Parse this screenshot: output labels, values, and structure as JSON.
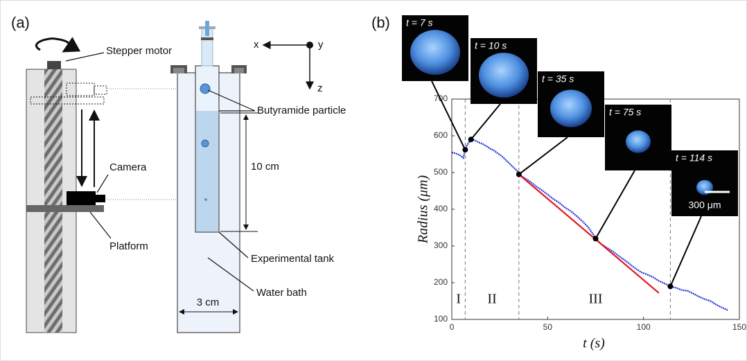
{
  "panel_a": {
    "label": "(a)",
    "labels": {
      "stepper_motor": "Stepper motor",
      "camera": "Camera",
      "platform": "Platform",
      "particle": "Butyramide particle",
      "height": "10 cm",
      "tank": "Experimental tank",
      "bath": "Water bath",
      "width": "3 cm",
      "x": "x",
      "y": "y",
      "z": "z"
    }
  },
  "chart_data": {
    "type": "line",
    "panel_label": "(b)",
    "x_label": "t (s)",
    "y_label": "Radius (μm)",
    "xlim": [
      0,
      150
    ],
    "xticks": [
      0,
      50,
      100,
      150
    ],
    "ylim": [
      100,
      700
    ],
    "yticks": [
      100,
      200,
      300,
      400,
      500,
      600,
      700
    ],
    "x": [
      0,
      2,
      4,
      6,
      7,
      8,
      10,
      12,
      14,
      16,
      18,
      20,
      22,
      24,
      26,
      28,
      30,
      32,
      34,
      35,
      38,
      41,
      44,
      47,
      50,
      53,
      56,
      59,
      62,
      65,
      68,
      71,
      74,
      75,
      78,
      81,
      84,
      87,
      90,
      93,
      96,
      99,
      102,
      105,
      108,
      111,
      114,
      117,
      120,
      123,
      126,
      129,
      132,
      135,
      138,
      141,
      144
    ],
    "values": [
      555,
      552,
      548,
      540,
      562,
      575,
      590,
      588,
      582,
      578,
      572,
      565,
      560,
      552,
      545,
      535,
      525,
      515,
      505,
      495,
      485,
      475,
      462,
      452,
      440,
      428,
      418,
      405,
      395,
      382,
      368,
      352,
      330,
      320,
      305,
      295,
      285,
      273,
      262,
      250,
      238,
      228,
      222,
      215,
      205,
      198,
      190,
      186,
      180,
      178,
      170,
      162,
      155,
      150,
      140,
      132,
      125
    ],
    "color": "#1f2fd8",
    "fit": {
      "x": [
        35,
        108
      ],
      "values": [
        495,
        172
      ],
      "color": "#e8141c"
    },
    "dividers": [
      7,
      35,
      114
    ],
    "regions": [
      {
        "label": "I",
        "x": 3.5
      },
      {
        "label": "II",
        "x": 21
      },
      {
        "label": "III",
        "x": 75
      }
    ],
    "snapshots": [
      {
        "label": "t = 7 s",
        "t": 7,
        "radius": 562
      },
      {
        "label": "t = 10 s",
        "t": 10,
        "radius": 590
      },
      {
        "label": "t = 35 s",
        "t": 35,
        "radius": 495
      },
      {
        "label": "t = 75 s",
        "t": 75,
        "radius": 320
      },
      {
        "label": "t = 114 s",
        "t": 114,
        "radius": 190
      }
    ],
    "scale_bar": "300 μm"
  }
}
